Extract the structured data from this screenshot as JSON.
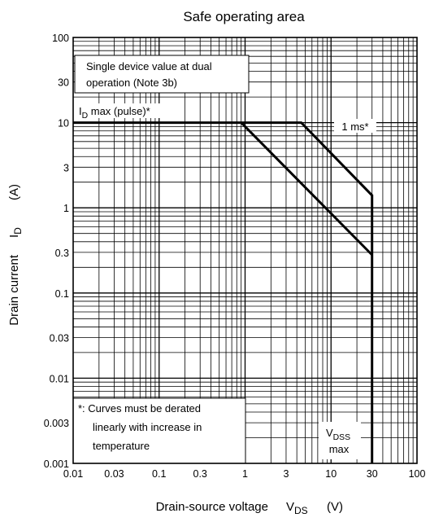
{
  "chart_data": {
    "type": "line",
    "title": "Safe operating area",
    "xlabel": {
      "text": "Drain-source voltage",
      "symbol": "V",
      "subscript": "DS",
      "unit": "(V)"
    },
    "ylabel": {
      "text": "Drain current",
      "symbol": "I",
      "subscript": "D",
      "unit": "(A)"
    },
    "x_scale": "log",
    "y_scale": "log",
    "xlim": [
      0.01,
      100
    ],
    "ylim": [
      0.001,
      100
    ],
    "grid": true,
    "x_ticks": [
      0.01,
      0.03,
      0.1,
      0.3,
      1,
      3,
      10,
      30,
      100
    ],
    "x_tick_labels": [
      "0.01",
      "0.03",
      "0.1",
      "0.3",
      "1",
      "3",
      "10",
      "30",
      "100"
    ],
    "y_ticks": [
      0.001,
      0.003,
      0.01,
      0.03,
      0.1,
      0.3,
      1,
      3,
      10,
      30,
      100
    ],
    "y_tick_labels": [
      "0.001",
      "0.003",
      "0.01",
      "0.03",
      "0.1",
      "0.3",
      "1",
      "3",
      "10",
      "30",
      "100"
    ],
    "series": [
      {
        "name": "1 ms*",
        "x": [
          0.01,
          4.5,
          30,
          30
        ],
        "y": [
          10,
          10,
          1.4,
          0.001
        ]
      },
      {
        "x": [
          0.9,
          30
        ],
        "y": [
          10,
          0.28
        ]
      }
    ],
    "annotations": {
      "box_note": [
        "Single device value at dual",
        "operation (Note 3b)"
      ],
      "id_max": {
        "symbol": "I",
        "subscript": "D",
        "text": " max (pulse)*"
      },
      "curve_label": "1 ms*",
      "derate_note": [
        "*: Curves must be derated",
        "linearly with increase in",
        "temperature"
      ],
      "vdss": {
        "symbol": "V",
        "subscript": "DSS",
        "text": "max"
      }
    }
  }
}
